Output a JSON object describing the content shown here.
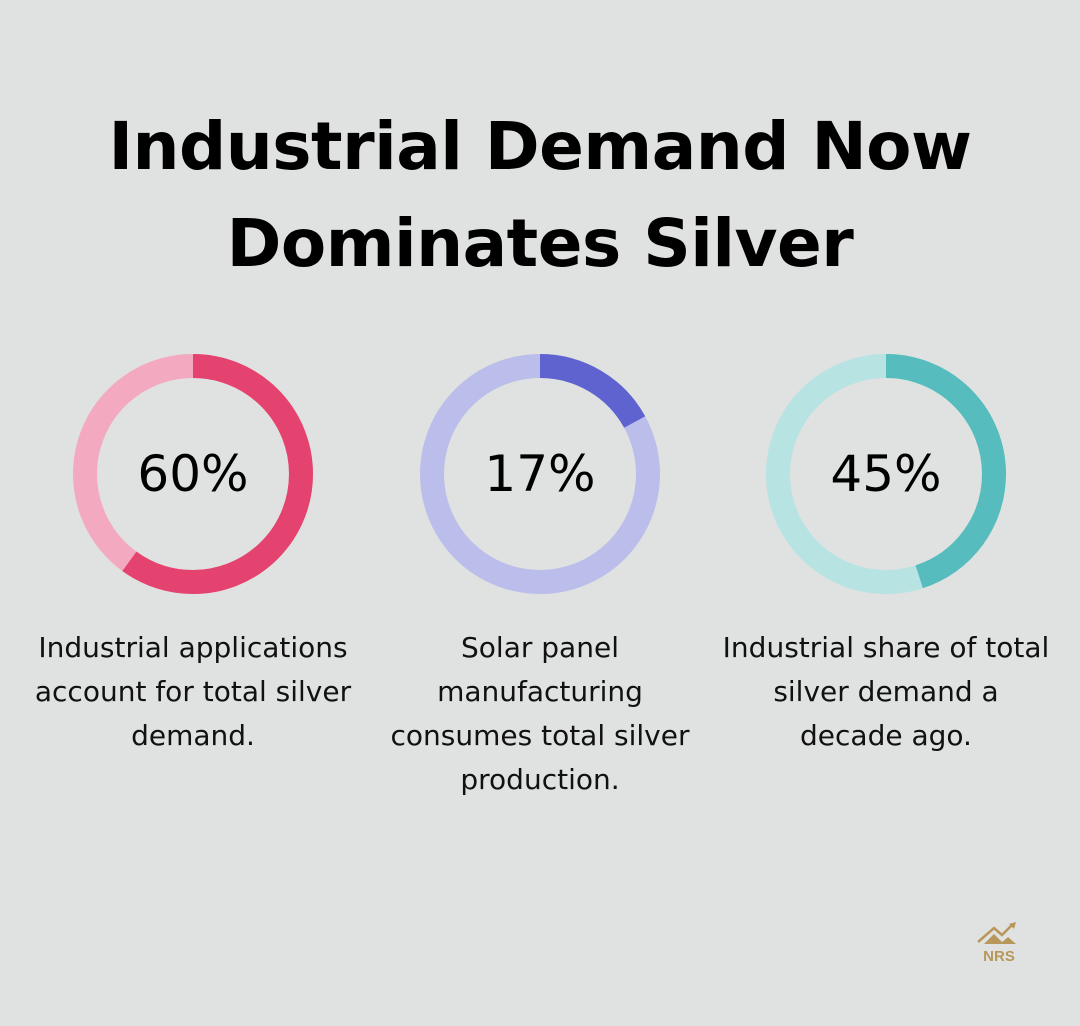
{
  "title_lines": [
    "Industrial Demand Now",
    "Dominates Silver"
  ],
  "chart_data": [
    {
      "type": "pie",
      "style": "donut",
      "value": 60,
      "label": "60%",
      "caption": "Industrial applications account for total silver demand.",
      "colors": {
        "filled": "#e5436f",
        "remaining": "#f3a9bf"
      }
    },
    {
      "type": "pie",
      "style": "donut",
      "value": 17,
      "label": "17%",
      "caption": "Solar panel manufacturing consumes total silver production.",
      "colors": {
        "filled": "#5f63d0",
        "remaining": "#bbbdea"
      }
    },
    {
      "type": "pie",
      "style": "donut",
      "value": 45,
      "label": "45%",
      "caption": "Industrial share of total silver demand a decade ago.",
      "colors": {
        "filled": "#56bcbd",
        "remaining": "#b7e3e3"
      }
    }
  ],
  "logo": {
    "text": "NRS",
    "color": "#b8975a"
  }
}
